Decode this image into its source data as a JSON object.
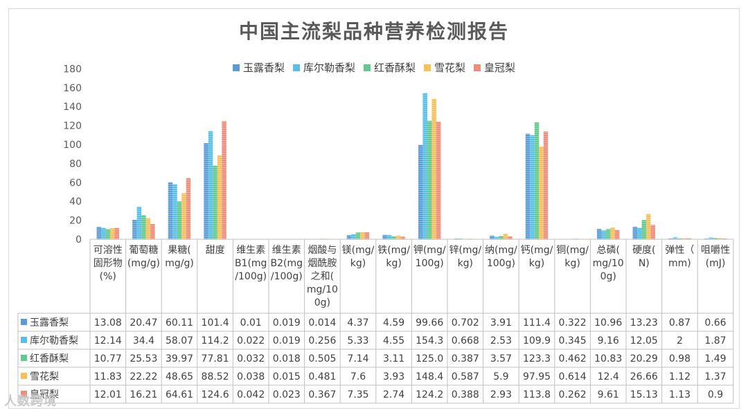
{
  "watermark": "人数跨境",
  "chart_data": {
    "type": "bar",
    "title": "中国主流梨品种营养检测报告",
    "ylim": [
      0,
      180
    ],
    "yticks": [
      0,
      20,
      40,
      60,
      80,
      100,
      120,
      140,
      160,
      180
    ],
    "grid": false,
    "legend_position": "top",
    "categories": [
      "可溶性固形物(%)",
      "葡萄糖(mg/g)",
      "果糖(mg/g)",
      "甜度",
      "维生素B1(mg/100g)",
      "维生素B2(mg/100g)",
      "烟酸与烟酰胺之和(mg/100g)",
      "镁(mg/kg)",
      "铁(mg/kg)",
      "钾(mg/100g)",
      "锌(mg/kg)",
      "纳(mg/100g)",
      "钙(mg/kg)",
      "铜(mg/kg)",
      "总磷(mg/100g)",
      "硬度(N)",
      "弹性(mm)",
      "咀嚼性(mJ)"
    ],
    "category_labels": [
      [
        "可溶性",
        "固形物",
        "(%)"
      ],
      [
        "葡萄糖",
        "(mg/g)"
      ],
      [
        "果糖(",
        "mg/g)"
      ],
      [
        "甜度"
      ],
      [
        "维生素",
        "B1(mg",
        "/100g)"
      ],
      [
        "维生素",
        "B2(mg",
        "/100g)"
      ],
      [
        "烟酸与",
        "烟酰胺",
        "之和(",
        "mg/10",
        "0g)"
      ],
      [
        "镁(mg/",
        "kg)"
      ],
      [
        "铁(mg/",
        "kg)"
      ],
      [
        "钾(mg/",
        "100g)"
      ],
      [
        "锌(mg/",
        "kg)"
      ],
      [
        "纳(mg/",
        "100g)"
      ],
      [
        "钙(mg/",
        "kg)"
      ],
      [
        "铜(mg/",
        "kg)"
      ],
      [
        "总磷(",
        "mg/10",
        "0g)"
      ],
      [
        "硬度(",
        "N)"
      ],
      [
        "弹性（",
        "mm)"
      ],
      [
        "咀嚼性",
        "(mJ)"
      ]
    ],
    "series": [
      {
        "name": "玉露香梨",
        "color": "#5B9BD5",
        "labels": [
          "13.08",
          "20.47",
          "60.11",
          "101.4",
          "0.01",
          "0.019",
          "0.014",
          "4.37",
          "4.59",
          "99.66",
          "0.702",
          "3.91",
          "111.4",
          "0.322",
          "10.96",
          "13.23",
          "0.87",
          "0.66"
        ],
        "values": [
          13.08,
          20.47,
          60.11,
          101.4,
          0.01,
          0.019,
          0.014,
          4.37,
          4.59,
          99.66,
          0.702,
          3.91,
          111.4,
          0.322,
          10.96,
          13.23,
          0.87,
          0.66
        ]
      },
      {
        "name": "库尔勒香梨",
        "color": "#56BFE8",
        "labels": [
          "12.14",
          "34.4",
          "58.07",
          "114.2",
          "0.022",
          "0.019",
          "0.256",
          "5.33",
          "4.55",
          "154.3",
          "0.668",
          "2.53",
          "109.9",
          "0.345",
          "9.16",
          "12.05",
          "2",
          "1.87"
        ],
        "values": [
          12.14,
          34.4,
          58.07,
          114.2,
          0.022,
          0.019,
          0.256,
          5.33,
          4.55,
          154.3,
          0.668,
          2.53,
          109.9,
          0.345,
          9.16,
          12.05,
          2,
          1.87
        ]
      },
      {
        "name": "红香酥梨",
        "color": "#62C98C",
        "labels": [
          "10.77",
          "25.53",
          "39.97",
          "77.81",
          "0.032",
          "0.018",
          "0.505",
          "7.14",
          "3.11",
          "125.0",
          "0.387",
          "3.57",
          "123.3",
          "0.462",
          "10.83",
          "20.29",
          "0.98",
          "1.49"
        ],
        "values": [
          10.77,
          25.53,
          39.97,
          77.81,
          0.032,
          0.018,
          0.505,
          7.14,
          3.11,
          125.0,
          0.387,
          3.57,
          123.3,
          0.462,
          10.83,
          20.29,
          0.98,
          1.49
        ]
      },
      {
        "name": "雪花梨",
        "color": "#F8BF5B",
        "labels": [
          "11.83",
          "22.22",
          "48.65",
          "88.52",
          "0.038",
          "0.015",
          "0.481",
          "7.6",
          "3.93",
          "148.4",
          "0.587",
          "5.9",
          "97.95",
          "0.614",
          "12.4",
          "26.66",
          "1.12",
          "1.37"
        ],
        "values": [
          11.83,
          22.22,
          48.65,
          88.52,
          0.038,
          0.015,
          0.481,
          7.6,
          3.93,
          148.4,
          0.587,
          5.9,
          97.95,
          0.614,
          12.4,
          26.66,
          1.12,
          1.37
        ]
      },
      {
        "name": "皇冠梨",
        "color": "#EE8C7C",
        "labels": [
          "12.01",
          "16.21",
          "64.61",
          "124.6",
          "0.042",
          "0.023",
          "0.367",
          "7.35",
          "2.74",
          "124.2",
          "0.388",
          "2.93",
          "113.8",
          "0.262",
          "9.61",
          "15.13",
          "1.13",
          "0.9"
        ],
        "values": [
          12.01,
          16.21,
          64.61,
          124.6,
          0.042,
          0.023,
          0.367,
          7.35,
          2.74,
          124.2,
          0.388,
          2.93,
          113.8,
          0.262,
          9.61,
          15.13,
          1.13,
          0.9
        ]
      }
    ]
  }
}
